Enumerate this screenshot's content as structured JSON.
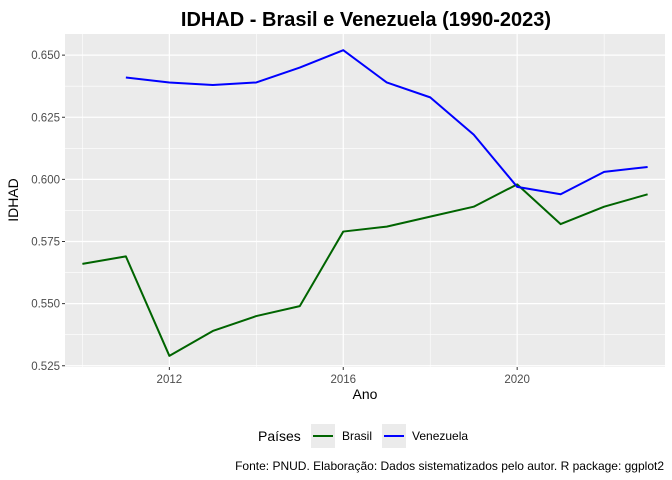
{
  "chart_data": {
    "type": "line",
    "title": "IDHAD - Brasil e Venezuela (1990-2023)",
    "xlabel": "Ano",
    "ylabel": "IDHAD",
    "caption": "Fonte: PNUD. Elaboração: Dados sistematizados pelo autor. R package: ggplot2",
    "xlim": [
      2009.6,
      2023.4
    ],
    "ylim": [
      0.5245,
      0.6585
    ],
    "x_ticks": [
      2012,
      2016,
      2020
    ],
    "x_tick_labels": [
      "2012",
      "2016",
      "2020"
    ],
    "y_ticks": [
      0.525,
      0.55,
      0.575,
      0.6,
      0.625,
      0.65
    ],
    "y_tick_labels": [
      "0.525",
      "0.550",
      "0.575",
      "0.600",
      "0.625",
      "0.650"
    ],
    "grid": true,
    "legend": {
      "title": "Países",
      "position": "bottom",
      "entries": [
        "Brasil",
        "Venezuela"
      ]
    },
    "series": [
      {
        "name": "Brasil",
        "color": "#006400",
        "x": [
          2010,
          2011,
          2012,
          2013,
          2014,
          2015,
          2016,
          2017,
          2018,
          2019,
          2020,
          2021,
          2022,
          2023
        ],
        "values": [
          0.566,
          0.569,
          0.529,
          0.539,
          0.545,
          0.549,
          0.579,
          0.581,
          0.585,
          0.589,
          0.598,
          0.582,
          0.589,
          0.594
        ]
      },
      {
        "name": "Venezuela",
        "color": "#0000FF",
        "x": [
          2011,
          2012,
          2013,
          2014,
          2015,
          2016,
          2017,
          2018,
          2019,
          2020,
          2021,
          2022,
          2023
        ],
        "values": [
          0.641,
          0.639,
          0.638,
          0.639,
          0.645,
          0.652,
          0.639,
          0.633,
          0.618,
          0.597,
          0.594,
          0.603,
          0.605
        ]
      }
    ]
  },
  "colors": {
    "panel_background": "#EBEBEB",
    "grid_major": "#FFFFFF",
    "brasil": "#006400",
    "venezuela": "#0000FF"
  }
}
